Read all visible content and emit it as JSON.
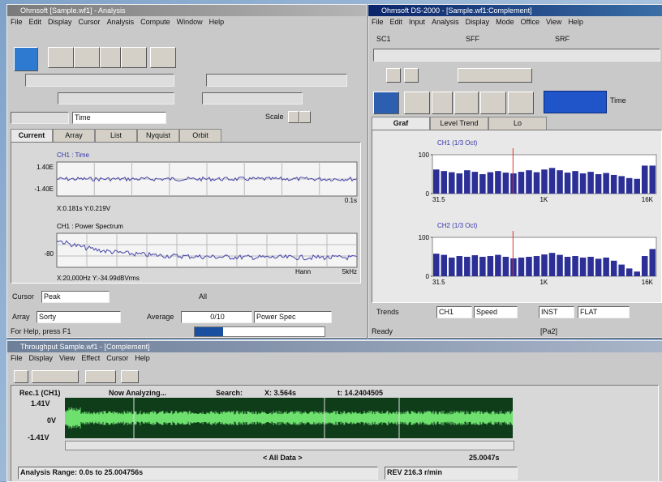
{
  "left_window": {
    "title": "Ohmsoft [Sample.wf1] - Analysis",
    "menu": [
      "File",
      "Edit",
      "Display",
      "Cursor",
      "Analysis",
      "Compute",
      "Window",
      "Help"
    ],
    "tabs": [
      "Current",
      "Array",
      "List",
      "Nyquist",
      "Orbit"
    ],
    "x_axis_select": "Time",
    "scale_label": "Scale",
    "time_plot": {
      "title": "CH1 : Time",
      "ytick_top": "1.40E",
      "ytick_bottom": "-1.40E",
      "x_end": "0.1s",
      "cursor": "X:0.181s Y:0.219V"
    },
    "spectrum_plot": {
      "title": "CH1 : Power Spectrum",
      "ytick": "-80",
      "window": "Hann",
      "x_end": "5kHz",
      "cursor": "X:20,000Hz Y:-34.99dBVrms"
    },
    "cursor_label": "Cursor",
    "cursor_mode": "Peak",
    "all_label": "All",
    "delta_label": "Array",
    "delta_value": "Sorty",
    "average_label": "Average",
    "average_value": "0/10",
    "function_value": "Power Spec",
    "status": "For Help, press F1"
  },
  "right_window": {
    "title": "Ohmsoft DS-2000 - [Sample.wf1:Complement]",
    "menu": [
      "File",
      "Edit",
      "Input",
      "Analysis",
      "Display",
      "Mode",
      "Office",
      "View",
      "Help"
    ],
    "channels": [
      "SC1",
      "SFF",
      "SRF"
    ],
    "tabs": [
      "Graf",
      "Level Trend",
      "Lo"
    ],
    "time_label": "Time",
    "charts": [
      {
        "name": "CH1 (1/3 Oct)",
        "ylim": [
          0,
          100
        ],
        "yticks": [
          0,
          100
        ],
        "color": "#2b2f96",
        "x_start": "31.5",
        "x_mid": "1K",
        "x_end": "16K",
        "values": [
          62,
          58,
          55,
          52,
          60,
          56,
          50,
          55,
          58,
          54,
          52,
          56,
          60,
          55,
          62,
          66,
          60,
          54,
          58,
          52,
          56,
          50,
          53,
          48,
          45,
          40,
          38,
          72,
          72
        ]
      },
      {
        "name": "CH2 (1/3 Oct)",
        "ylim": [
          0,
          100
        ],
        "yticks": [
          0,
          100
        ],
        "color": "#2b2f96",
        "x_start": "31.5",
        "x_mid": "1K",
        "x_end": "16K",
        "values": [
          58,
          55,
          48,
          52,
          50,
          54,
          50,
          52,
          55,
          50,
          46,
          48,
          50,
          52,
          56,
          60,
          55,
          50,
          52,
          48,
          50,
          45,
          48,
          40,
          30,
          20,
          12,
          52,
          70
        ]
      }
    ],
    "trend_label": "Trends",
    "trend_ch": "CH1",
    "trend_mode": "Speed",
    "trend_src": "INST",
    "trend_weight": "FLAT",
    "status": "Ready",
    "status_right": "[Pa2]"
  },
  "bottom_window": {
    "title": "Throughput Sample.wf1 - [Complement]",
    "menu": [
      "File",
      "Display",
      "View",
      "Effect",
      "Cursor",
      "Help"
    ],
    "record": "Rec.1 (CH1)",
    "state": "Now Analyzing...",
    "search_label": "Search:",
    "x_readout": "X: 3.564s",
    "t_readout": "t: 14.2404505",
    "yticks": [
      "1.41V",
      "0V",
      "-1.41V"
    ],
    "range_label": "< All Data >",
    "end_time": "25.0047s",
    "analysis_range": "Analysis Range: 0.0s to 25.004756s",
    "rev": "REV 216.3 r/min"
  }
}
